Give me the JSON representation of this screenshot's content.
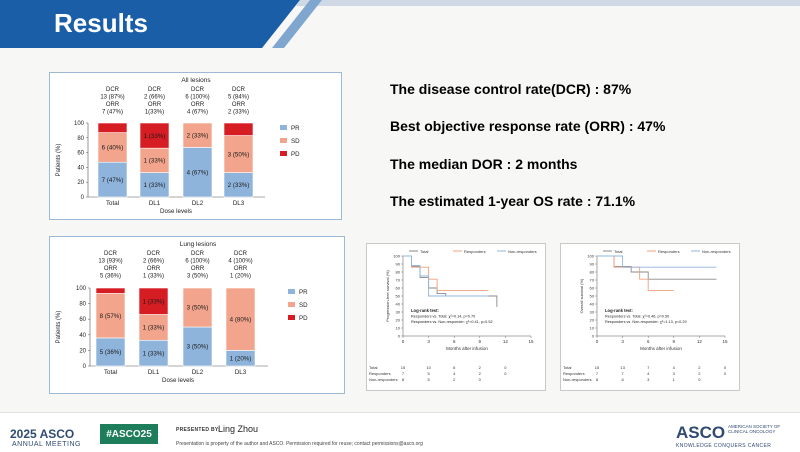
{
  "header": {
    "title": "Results"
  },
  "bullets": [
    {
      "text": "The disease control rate(DCR)  :  87%",
      "style": "dark"
    },
    {
      "text": "Best objective response rate (ORR) : 47%",
      "style": "light"
    },
    {
      "text": "The median DOR  : 2 months",
      "style": "dark"
    },
    {
      "text": "The estimated 1-year OS rate : 71.1%",
      "style": "light"
    }
  ],
  "colors": {
    "PR": "#8fb4dc",
    "SD": "#f2a58c",
    "PD": "#d71d24",
    "brand": "#1b5ea8"
  },
  "chart_data": [
    {
      "type": "bar",
      "stacked": true,
      "title": "All lesions",
      "xlabel": "Dose levels",
      "ylabel": "Patients (%)",
      "ylim": [
        0,
        100
      ],
      "yticks": [
        "0",
        "20",
        "40",
        "60",
        "80",
        "100"
      ],
      "categories": [
        "Total",
        "DL1",
        "DL2",
        "DL3"
      ],
      "column_headers": [
        [
          "DCR",
          "13 (87%)",
          "ORR",
          "7 (47%)"
        ],
        [
          "DCR",
          "2 (66%)",
          "ORR",
          "1(33%)"
        ],
        [
          "DCR",
          "6 (100%)",
          "ORR",
          "4 (67%)"
        ],
        [
          "DCR",
          "5 (84%)",
          "ORR",
          "2 (33%)"
        ]
      ],
      "series": [
        {
          "name": "PR",
          "values": [
            47,
            33,
            67,
            33
          ],
          "labels": [
            "7 (47%)",
            "1 (33%)",
            "4 (67%)",
            "2 (33%)"
          ]
        },
        {
          "name": "SD",
          "values": [
            40,
            33,
            33,
            50
          ],
          "labels": [
            "6 (40%)",
            "1 (33%)",
            "2 (33%)",
            "3 (50%)"
          ]
        },
        {
          "name": "PD",
          "values": [
            13,
            34,
            0,
            17
          ],
          "labels": [
            "",
            "1 (33%)",
            "",
            ""
          ]
        }
      ],
      "legend": "right"
    },
    {
      "type": "bar",
      "stacked": true,
      "title": "Lung lesions",
      "xlabel": "Dose levels",
      "ylabel": "Patients (%)",
      "ylim": [
        0,
        100
      ],
      "yticks": [
        "0",
        "20",
        "40",
        "60",
        "80",
        "100"
      ],
      "categories": [
        "Total",
        "DL1",
        "DL2",
        "DL3"
      ],
      "column_headers": [
        [
          "DCR",
          "13 (93%)",
          "ORR",
          "5 (36%)"
        ],
        [
          "DCR",
          "2 (66%)",
          "ORR",
          "1 (33%)"
        ],
        [
          "DCR",
          "6 (100%)",
          "ORR",
          "3 (50%)"
        ],
        [
          "DCR",
          "4 (100%)",
          "ORR",
          "1 (20%)"
        ]
      ],
      "series": [
        {
          "name": "PR",
          "values": [
            36,
            33,
            50,
            20
          ],
          "labels": [
            "5 (36%)",
            "1 (33%)",
            "3 (50%)",
            "1 (20%)"
          ]
        },
        {
          "name": "SD",
          "values": [
            57,
            33,
            50,
            80
          ],
          "labels": [
            "8 (57%)",
            "1 (33%)",
            "3 (50%)",
            "4 (80%)"
          ]
        },
        {
          "name": "PD",
          "values": [
            7,
            34,
            0,
            0
          ],
          "labels": [
            "",
            "1 (33%)",
            "",
            ""
          ]
        }
      ],
      "legend": "right"
    },
    {
      "type": "line",
      "step": true,
      "xlabel": "Months after infusion",
      "ylabel": "Progression-free survival (%)",
      "xlim": [
        0,
        15
      ],
      "ylim": [
        0,
        100
      ],
      "xticks": [
        "0",
        "3",
        "6",
        "9",
        "12",
        "15"
      ],
      "yticks": [
        "0",
        "10",
        "20",
        "30",
        "40",
        "50",
        "60",
        "70",
        "80",
        "90",
        "100"
      ],
      "series": [
        {
          "name": "Total",
          "color": "#8a8a8a",
          "x": [
            0,
            1,
            2,
            3,
            4,
            5,
            10,
            11
          ],
          "y": [
            100,
            87,
            73,
            60,
            53,
            50,
            50,
            25
          ]
        },
        {
          "name": "Responders",
          "color": "#f0a07a",
          "x": [
            0,
            1,
            3,
            4,
            10
          ],
          "y": [
            100,
            86,
            71,
            57,
            57
          ]
        },
        {
          "name": "Non-responders",
          "color": "#8fb4dc",
          "x": [
            0,
            1,
            2,
            3,
            10
          ],
          "y": [
            100,
            88,
            75,
            50,
            50
          ]
        }
      ],
      "annotation": [
        "Log-rank test:",
        "Responders vs. Total: χ²=0.14, p=0.70",
        "Responders vs. Non-responder: χ²=0.41, p=0.52"
      ],
      "risk_table": {
        "rows": [
          {
            "label": "Total",
            "values": [
              "15",
              "10",
              "6",
              "2",
              "0",
              ""
            ]
          },
          {
            "label": "Responders",
            "values": [
              "7",
              "5",
              "4",
              "2",
              "0",
              ""
            ]
          },
          {
            "label": "Non-responders",
            "values": [
              "8",
              "5",
              "2",
              "0",
              "",
              ""
            ]
          }
        ]
      }
    },
    {
      "type": "line",
      "step": true,
      "xlabel": "Months after infusion",
      "ylabel": "Overall survival (%)",
      "xlim": [
        0,
        15
      ],
      "ylim": [
        0,
        100
      ],
      "xticks": [
        "0",
        "3",
        "6",
        "9",
        "12",
        "15"
      ],
      "yticks": [
        "0",
        "10",
        "20",
        "30",
        "40",
        "50",
        "60",
        "70",
        "80",
        "90",
        "100"
      ],
      "series": [
        {
          "name": "Total",
          "color": "#8a8a8a",
          "x": [
            0,
            2,
            4,
            6,
            14
          ],
          "y": [
            100,
            87,
            80,
            71,
            71
          ]
        },
        {
          "name": "Responders",
          "color": "#f0a07a",
          "x": [
            0,
            2,
            5,
            6,
            9
          ],
          "y": [
            100,
            86,
            71,
            57,
            57
          ]
        },
        {
          "name": "Non-responders",
          "color": "#8fb4dc",
          "x": [
            0,
            3,
            14
          ],
          "y": [
            100,
            86,
            86
          ]
        }
      ],
      "annotation": [
        "Log-rank test:",
        "Responders vs. Total: χ²=0.46, p=0.50",
        "Responders vs. Non-responder: χ²=1.13, p=0.29"
      ],
      "risk_table": {
        "rows": [
          {
            "label": "Total",
            "values": [
              "15",
              "13",
              "7",
              "4",
              "2",
              "0"
            ]
          },
          {
            "label": "Responders",
            "values": [
              "7",
              "7",
              "4",
              "3",
              "2",
              "0"
            ]
          },
          {
            "label": "Non-responders",
            "values": [
              "8",
              "6",
              "3",
              "1",
              "0",
              ""
            ]
          }
        ]
      }
    }
  ],
  "footer": {
    "asco_year": "2025 ASCO",
    "annual_meeting": "ANNUAL MEETING",
    "hashtag": "#ASCO25",
    "presented_by_label": "PRESENTED BY:",
    "presenter": "Ling Zhou",
    "disclaimer": "Presentation is property of the author and ASCO. Permission required for reuse; contact permissions@asco.org",
    "asco_logo": "ASCO",
    "asco_society": "AMERICAN SOCIETY OF CLINICAL ONCOLOGY",
    "asco_tagline": "KNOWLEDGE CONQUERS CANCER"
  }
}
